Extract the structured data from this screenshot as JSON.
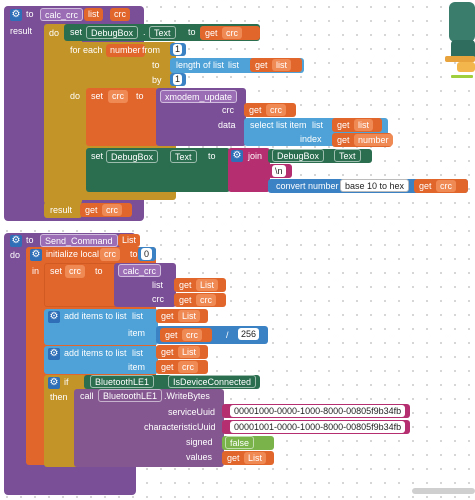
{
  "blocks": {
    "calc_crc": {
      "to": "to",
      "name": "calc_crc",
      "param1": "list",
      "param2": "crc",
      "result": "result",
      "do": "do",
      "set": "set",
      "component": "DebugBox",
      "property": "Text",
      "to2": "to",
      "get": "get",
      "crc": "crc",
      "for_each": "for each",
      "number": "number",
      "from": "from",
      "from_val": "1",
      "to3": "to",
      "length_of_list": "length of list",
      "list_label": "list",
      "list": "list",
      "by": "by",
      "by_val": "1",
      "do2": "do",
      "set2": "set",
      "to4": "to",
      "xmodem": "xmodem_update",
      "crc_arg": "crc",
      "data_arg": "data",
      "select_item": "select list item",
      "list_label2": "list",
      "index": "index",
      "number_var": "number",
      "set3": "set",
      "join": "join",
      "newline": "\\n",
      "convert": "convert number",
      "convert_mode": "base 10 to hex",
      "result_label": "result"
    },
    "send_command": {
      "to": "to",
      "name": "Send_Command",
      "param": "List",
      "do": "do",
      "initialize_local": "initialize local",
      "crc": "crc",
      "to2": "to",
      "init_val": "0",
      "in": "in",
      "set": "set",
      "calc_crc": "calc_crc",
      "list_arg": "list",
      "crc_arg": "crc",
      "get": "get",
      "List_var": "List",
      "add_items": "add items to list",
      "list_label": "list",
      "item_label": "item",
      "divide": "/",
      "div_val": "256",
      "if": "if",
      "ble": "BluetoothLE1",
      "is_connected": "IsDeviceConnected",
      "then": "then",
      "call": "call",
      "write_bytes": ".WriteBytes",
      "service_uuid": "serviceUuid",
      "service_val": "00001000-0000-1000-8000-00805f9b34fb",
      "char_uuid": "characteristicUuid",
      "char_val": "00001001-0000-1000-8000-00805f9b34fb",
      "signed": "signed",
      "false": "false",
      "values": "values"
    }
  },
  "colors": {
    "procedure": "#7b4f97",
    "variable": "#e1662c",
    "control": "#c39427",
    "component_set": "#2a6e4f",
    "component_call": "#845790",
    "list": "#4fa2d7",
    "math": "#3b82c4",
    "text": "#b52e6f",
    "logic": "#79b34a",
    "trash_lid": "#e8a33d",
    "trash_body": "#3a7d6d"
  },
  "icons": {
    "gear": "gear-icon",
    "trash": "trash-icon"
  }
}
